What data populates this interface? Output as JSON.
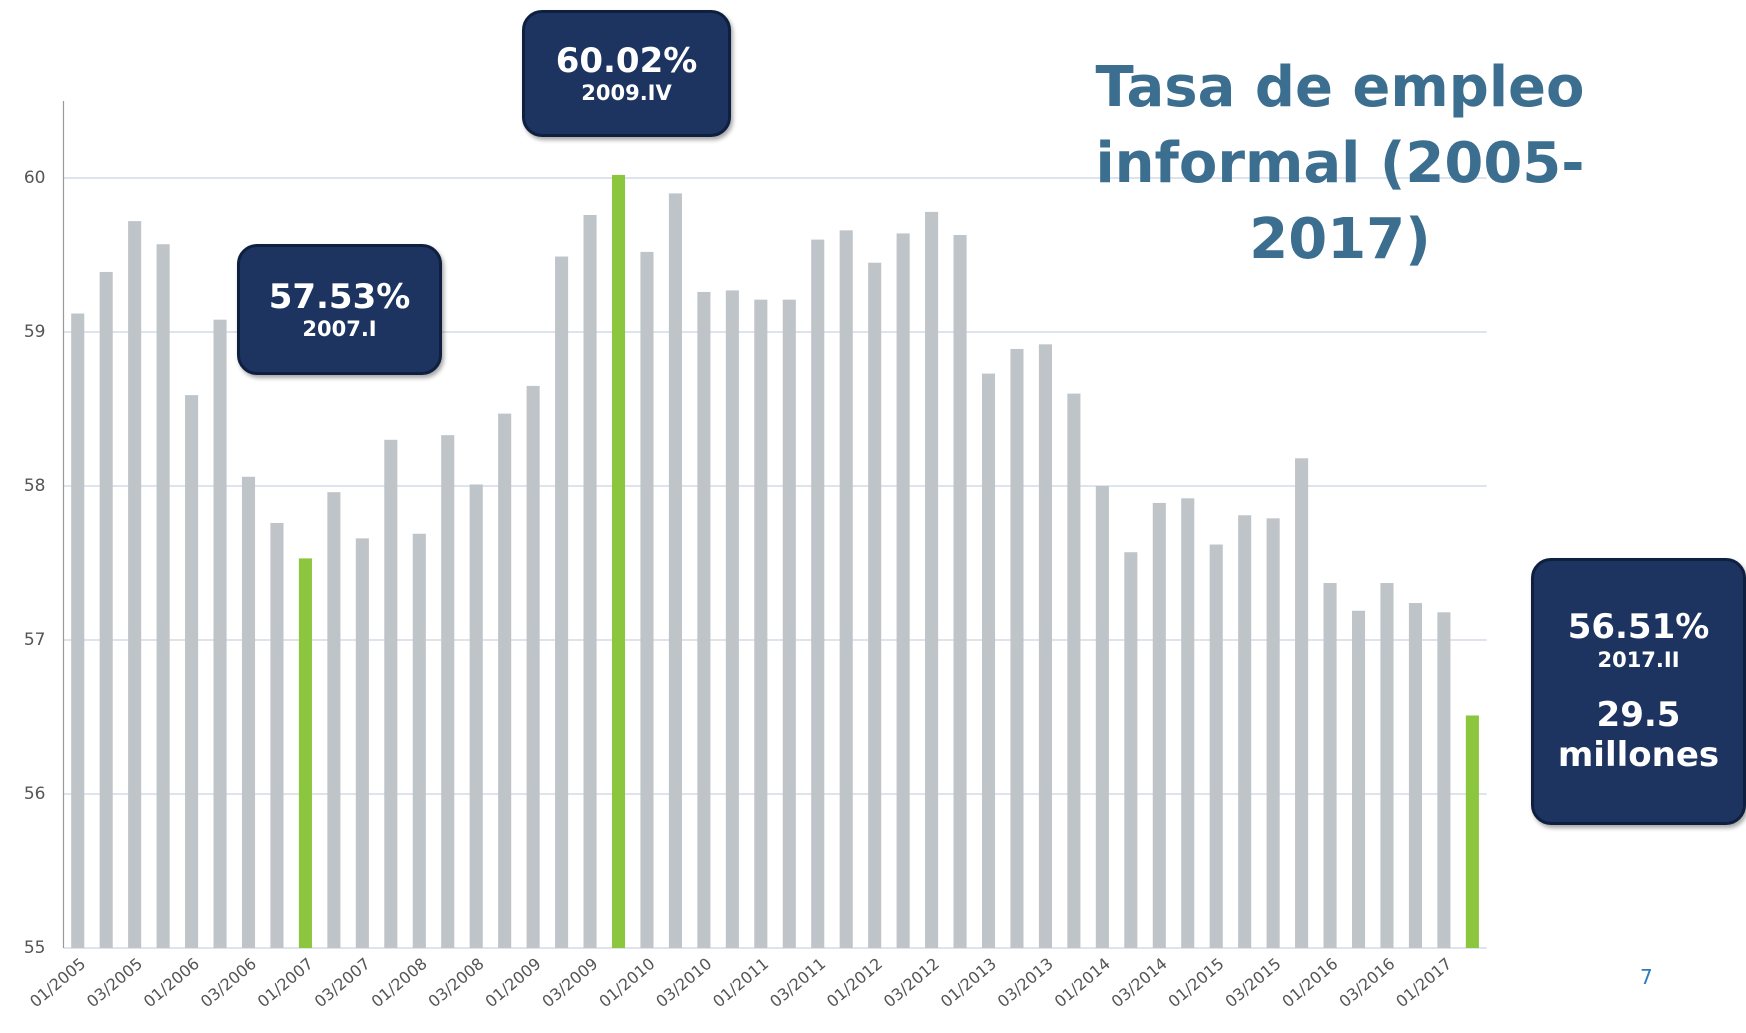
{
  "chart_data": {
    "type": "bar",
    "title": "Tasa de empleo informal (2005-2017)",
    "categories": [
      "01/2005",
      null,
      "03/2005",
      null,
      "01/2006",
      null,
      "03/2006",
      null,
      "01/2007",
      null,
      "03/2007",
      null,
      "01/2008",
      null,
      "03/2008",
      null,
      "01/2009",
      null,
      "03/2009",
      null,
      "01/2010",
      null,
      "03/2010",
      null,
      "01/2011",
      null,
      "03/2011",
      null,
      "01/2012",
      null,
      "03/2012",
      null,
      "01/2013",
      null,
      "03/2013",
      null,
      "01/2014",
      null,
      "03/2014",
      null,
      "01/2015",
      null,
      "03/2015",
      null,
      "01/2016",
      null,
      "03/2016",
      null,
      "01/2017",
      null
    ],
    "values": [
      59.12,
      59.39,
      59.72,
      59.57,
      58.59,
      59.08,
      58.06,
      57.76,
      57.53,
      57.96,
      57.66,
      58.3,
      57.69,
      58.33,
      58.01,
      58.47,
      58.65,
      59.49,
      59.76,
      60.02,
      59.52,
      59.9,
      59.26,
      59.27,
      59.21,
      59.21,
      59.6,
      59.66,
      59.45,
      59.64,
      59.78,
      59.63,
      58.73,
      58.89,
      58.92,
      58.6,
      58.0,
      57.57,
      57.89,
      57.92,
      57.62,
      57.81,
      57.79,
      58.18,
      57.37,
      57.19,
      57.37,
      57.24,
      57.18,
      56.51
    ],
    "colors": [
      "#bfc4c9",
      "#bfc4c9",
      "#bfc4c9",
      "#bfc4c9",
      "#bfc4c9",
      "#bfc4c9",
      "#bfc4c9",
      "#bfc4c9",
      "#8cc63f",
      "#bfc4c9",
      "#bfc4c9",
      "#bfc4c9",
      "#bfc4c9",
      "#bfc4c9",
      "#bfc4c9",
      "#bfc4c9",
      "#bfc4c9",
      "#bfc4c9",
      "#bfc4c9",
      "#8cc63f",
      "#bfc4c9",
      "#bfc4c9",
      "#bfc4c9",
      "#bfc4c9",
      "#bfc4c9",
      "#bfc4c9",
      "#bfc4c9",
      "#bfc4c9",
      "#bfc4c9",
      "#bfc4c9",
      "#bfc4c9",
      "#bfc4c9",
      "#bfc4c9",
      "#bfc4c9",
      "#bfc4c9",
      "#bfc4c9",
      "#bfc4c9",
      "#bfc4c9",
      "#bfc4c9",
      "#bfc4c9",
      "#bfc4c9",
      "#bfc4c9",
      "#bfc4c9",
      "#bfc4c9",
      "#bfc4c9",
      "#bfc4c9",
      "#bfc4c9",
      "#bfc4c9",
      "#bfc4c9",
      "#8cc63f"
    ],
    "ylim": [
      55,
      60.5
    ],
    "yticks": [
      55,
      56,
      57,
      58,
      59,
      60
    ],
    "grid": true,
    "annotations": [
      {
        "lines": [
          "57.53%",
          "2007.I"
        ]
      },
      {
        "lines": [
          "60.02%",
          "2009.IV"
        ]
      },
      {
        "lines": [
          "56.51%",
          "2017.II",
          "29.5",
          "millones"
        ]
      }
    ]
  },
  "page_number": "7"
}
